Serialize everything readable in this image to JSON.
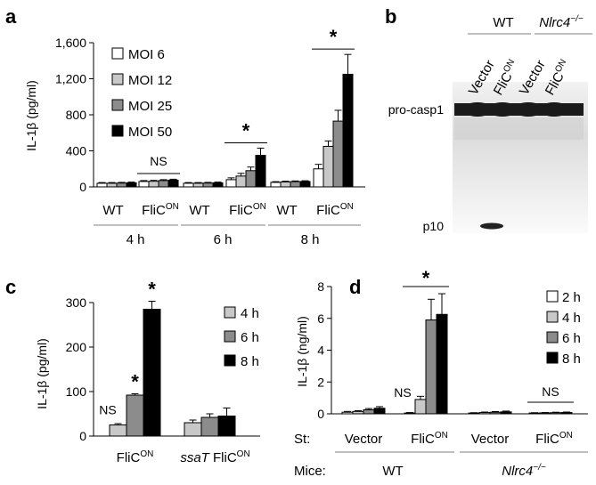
{
  "colors": {
    "MOI 6": "#ffffff",
    "MOI 12": "#c8c8c8",
    "MOI 25": "#8c8c8c",
    "MOI 50": "#000000",
    "4 h": "#c8c8c8",
    "6 h": "#8c8c8c",
    "8 h": "#000000",
    "2 h": "#ffffff"
  },
  "panels": {
    "a": {
      "letter": "a"
    },
    "b": {
      "letter": "b",
      "groups": [
        "WT",
        "Nlrc4"
      ],
      "nlrc4_sup": "−/−",
      "lanes": [
        "Vector",
        "FliC",
        "Vector",
        "FliC"
      ],
      "lane_sup": "ON",
      "bands": [
        "pro-casp1",
        "p10"
      ]
    },
    "c": {
      "letter": "c"
    },
    "d": {
      "letter": "d",
      "st_label": "St:",
      "mice_label": "Mice:",
      "mice_groups": [
        "WT",
        "Nlrc4"
      ],
      "mice_sup": "−/−"
    }
  },
  "chart_data": [
    {
      "type": "bar",
      "panel": "a",
      "ylabel": "IL-1β (pg/ml)",
      "ylim": [
        0,
        1600
      ],
      "yticks": [
        "0",
        "400",
        "800",
        "1,200",
        "1,600"
      ],
      "ytick_values": [
        0,
        400,
        800,
        1200,
        1600
      ],
      "legend": [
        "MOI 6",
        "MOI 12",
        "MOI 25",
        "MOI 50"
      ],
      "legend_placement": "top-left",
      "groups": [
        {
          "strain": "WT",
          "time": "4 h",
          "values": [
            40,
            40,
            42,
            45
          ],
          "errors": [
            8,
            8,
            8,
            8
          ]
        },
        {
          "strain": "FliC",
          "strain_sup": "ON",
          "time": "4 h",
          "values": [
            60,
            62,
            70,
            75
          ],
          "errors": [
            10,
            10,
            10,
            10
          ],
          "annotation": "NS"
        },
        {
          "strain": "WT",
          "time": "6 h",
          "values": [
            40,
            40,
            42,
            45
          ],
          "errors": [
            8,
            8,
            8,
            8
          ]
        },
        {
          "strain": "FliC",
          "strain_sup": "ON",
          "time": "6 h",
          "values": [
            80,
            120,
            180,
            350
          ],
          "errors": [
            20,
            30,
            40,
            80
          ],
          "annotation": "*"
        },
        {
          "strain": "WT",
          "time": "8 h",
          "values": [
            50,
            55,
            58,
            60
          ],
          "errors": [
            8,
            8,
            8,
            8
          ]
        },
        {
          "strain": "FliC",
          "strain_sup": "ON",
          "time": "8 h",
          "values": [
            200,
            450,
            730,
            1250
          ],
          "errors": [
            50,
            60,
            120,
            220
          ],
          "annotation": "*"
        }
      ],
      "time_labels": [
        "4 h",
        "6 h",
        "8 h"
      ]
    },
    {
      "type": "bar",
      "panel": "c",
      "ylabel": "IL-1β (pg/ml)",
      "ylim": [
        0,
        300
      ],
      "yticks": [
        "0",
        "100",
        "200",
        "300"
      ],
      "ytick_values": [
        0,
        100,
        200,
        300
      ],
      "legend": [
        "4 h",
        "6 h",
        "8 h"
      ],
      "legend_placement": "top-right",
      "groups": [
        {
          "label": "FliC",
          "label_sup": "ON",
          "values": [
            25,
            92,
            285
          ],
          "errors": [
            3,
            3,
            18
          ],
          "annotations": [
            "NS",
            "*",
            "*"
          ]
        },
        {
          "label_italic": "ssaT",
          "label": "FliC",
          "label_sup": "ON",
          "values": [
            30,
            42,
            45
          ],
          "errors": [
            6,
            8,
            18
          ],
          "annotations": [
            "",
            "",
            ""
          ]
        }
      ]
    },
    {
      "type": "bar",
      "panel": "d",
      "ylabel": "IL-1β (ng/ml)",
      "ylim": [
        0,
        8
      ],
      "yticks": [
        "0",
        "2",
        "4",
        "6",
        "8"
      ],
      "ytick_values": [
        0,
        2,
        4,
        6,
        8
      ],
      "legend": [
        "2 h",
        "4 h",
        "6 h",
        "8 h"
      ],
      "legend_placement": "top-right",
      "groups": [
        {
          "st": "Vector",
          "values": [
            0.1,
            0.15,
            0.25,
            0.35
          ],
          "errors": [
            0.05,
            0.05,
            0.08,
            0.1
          ]
        },
        {
          "st": "FliC",
          "st_sup": "ON",
          "values": [
            0.05,
            0.9,
            5.9,
            6.25
          ],
          "errors": [
            0.03,
            0.2,
            1.3,
            1.3
          ],
          "annotation": "NS",
          "bracket": "*"
        },
        {
          "st": "Vector",
          "values": [
            0.05,
            0.08,
            0.1,
            0.12
          ],
          "errors": [
            0.02,
            0.03,
            0.04,
            0.05
          ]
        },
        {
          "st": "FliC",
          "st_sup": "ON",
          "values": [
            0.05,
            0.06,
            0.07,
            0.08
          ],
          "errors": [
            0.02,
            0.02,
            0.03,
            0.03
          ],
          "annotation": "NS"
        }
      ]
    }
  ]
}
